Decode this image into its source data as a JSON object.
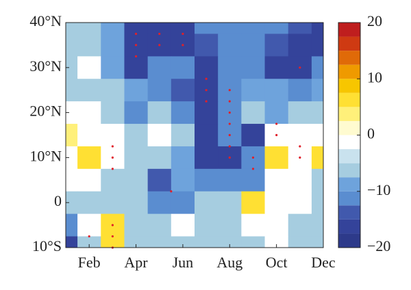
{
  "chart_data": {
    "type": "contour",
    "x": [
      1,
      2,
      3,
      4,
      5,
      6,
      7,
      8,
      9,
      10,
      11,
      12
    ],
    "y": [
      40,
      35,
      30,
      25,
      20,
      15,
      10,
      5,
      0,
      -5,
      -10
    ],
    "z": [
      [
        -7,
        -7,
        -10,
        -17,
        -17,
        -17,
        -12,
        -12,
        -12,
        -12,
        -15,
        -17
      ],
      [
        -7,
        -7,
        -10,
        -17,
        -17,
        -17,
        -15,
        -12,
        -12,
        -15,
        -17,
        -17
      ],
      [
        -7,
        -2,
        -10,
        -17,
        -12,
        -12,
        -17,
        -12,
        -12,
        -17,
        -17,
        -12
      ],
      [
        -7,
        -7,
        -7,
        -10,
        -12,
        -15,
        -17,
        -12,
        -10,
        -10,
        -12,
        -10
      ],
      [
        -2,
        -2,
        -7,
        -12,
        -7,
        -12,
        -17,
        -12,
        -7,
        -10,
        -7,
        -7
      ],
      [
        3,
        -2,
        -2,
        -7,
        -2,
        -7,
        -17,
        -12,
        -17,
        -2,
        -2,
        -2
      ],
      [
        -2,
        7,
        -2,
        -7,
        -7,
        -10,
        -17,
        -17,
        -12,
        7,
        -2,
        7
      ],
      [
        -2,
        -2,
        -7,
        -7,
        -15,
        -10,
        -12,
        -12,
        -12,
        -2,
        -2,
        -7
      ],
      [
        -7,
        -7,
        -7,
        -7,
        -12,
        -12,
        -7,
        -7,
        7,
        -2,
        -2,
        -7
      ],
      [
        -12,
        -2,
        7,
        -7,
        -7,
        -2,
        -7,
        -7,
        -2,
        -2,
        -7,
        -7
      ],
      [
        -17,
        -7,
        7,
        -7,
        -7,
        -7,
        -7,
        -7,
        -7,
        -2,
        -7,
        -7
      ]
    ],
    "levels": [
      -20,
      -17.5,
      -15,
      -12.5,
      -10,
      -7.5,
      -5,
      -2.5,
      0,
      2.5,
      5,
      7.5,
      10,
      12.5,
      15,
      17.5,
      20
    ],
    "colors": [
      "#2d3a8a",
      "#34439a",
      "#4159ad",
      "#5a8dd0",
      "#6ea3dc",
      "#a6cde0",
      "#c9e2ee",
      "#ffffff",
      "#fffbd0",
      "#fff07a",
      "#ffe033",
      "#f7c600",
      "#ef9a00",
      "#e06a08",
      "#cf3a12",
      "#bf1e1e"
    ],
    "xlim": [
      1,
      12
    ],
    "ylim": [
      -10,
      40
    ],
    "xticks": [
      {
        "value": 2,
        "label": "Feb"
      },
      {
        "value": 4,
        "label": "Apr"
      },
      {
        "value": 6,
        "label": "Jun"
      },
      {
        "value": 8,
        "label": "Aug"
      },
      {
        "value": 10,
        "label": "Oct"
      },
      {
        "value": 12,
        "label": "Dec"
      }
    ],
    "yticks": [
      {
        "value": -10,
        "label": "10°S"
      },
      0,
      {
        "value": 10,
        "label": "10°N"
      },
      {
        "value": 20,
        "label": "20°N"
      },
      {
        "value": 30,
        "label": "30°N"
      },
      {
        "value": 40,
        "label": "40°N"
      }
    ],
    "colorbar_ticks": [
      {
        "value": -20,
        "label": "−20"
      },
      {
        "value": -10,
        "label": "−10"
      },
      0,
      10,
      20
    ],
    "significant_points": {
      "color": "#e0202a",
      "x": [
        4,
        4,
        4,
        5,
        5,
        6,
        6,
        7,
        7,
        7,
        8,
        8,
        8,
        8,
        8,
        8,
        8,
        9,
        9,
        11,
        10,
        10,
        11,
        11,
        3,
        3,
        3,
        3,
        3,
        3,
        2,
        5.5
      ],
      "y": [
        37.5,
        35,
        32.5,
        37.5,
        35,
        37.5,
        35,
        27.5,
        25,
        22.5,
        25,
        22.5,
        20,
        17.5,
        15,
        12.5,
        10,
        10,
        7.5,
        30,
        17.5,
        15,
        12.5,
        10,
        12.5,
        10,
        7.5,
        -5,
        -7.5,
        -10,
        -7.5,
        2.5
      ]
    }
  }
}
